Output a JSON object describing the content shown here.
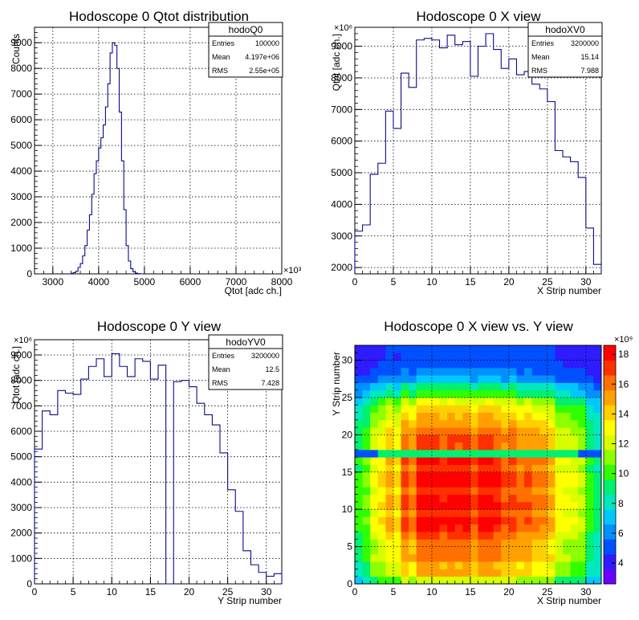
{
  "chart_data": [
    {
      "type": "histogram",
      "title": "Hodoscope 0 Qtot distribution",
      "xlabel": "Qtot [adc ch.]",
      "ylabel": "Counts",
      "x_exponent": "×10³",
      "xlim": [
        2600,
        8000
      ],
      "ylim": [
        0,
        9600
      ],
      "xticks": [
        3000,
        4000,
        5000,
        6000,
        7000,
        8000
      ],
      "xtick_labels": [
        "3000",
        "4000",
        "5000",
        "6000",
        "7000",
        "8000"
      ],
      "yticks": [
        0,
        1000,
        2000,
        3000,
        4000,
        5000,
        6000,
        7000,
        8000,
        9000
      ],
      "ytick_labels": [
        "0",
        "1000",
        "2000",
        "3000",
        "4000",
        "5000",
        "6000",
        "7000",
        "8000",
        "9000"
      ],
      "bin_width": 50,
      "x": [
        3400,
        3450,
        3500,
        3550,
        3600,
        3650,
        3700,
        3750,
        3800,
        3850,
        3900,
        3950,
        4000,
        4050,
        4100,
        4150,
        4200,
        4250,
        4300,
        4350,
        4400,
        4450,
        4500,
        4550,
        4600,
        4650,
        4700,
        4750,
        4800,
        4850,
        4900
      ],
      "values": [
        20,
        50,
        100,
        250,
        400,
        700,
        1100,
        1700,
        2300,
        3100,
        3900,
        4400,
        4900,
        5300,
        5800,
        6500,
        7400,
        8600,
        9000,
        8900,
        8000,
        6300,
        4400,
        2500,
        1100,
        500,
        200,
        80,
        30,
        10,
        0
      ],
      "stats": {
        "name": "hodoQ0",
        "rows": [
          {
            "label": "Entries",
            "value": "100000"
          },
          {
            "label": "Mean",
            "value": "4.197e+06"
          },
          {
            "label": "RMS",
            "value": "2.55e+05"
          }
        ]
      },
      "grid": true
    },
    {
      "type": "histogram",
      "title": "Hodoscope 0 X view",
      "xlabel": "X Strip number",
      "ylabel": "Qtot [adc ch.]",
      "y_exponent": "×10⁶",
      "xlim": [
        0,
        32
      ],
      "ylim": [
        1800,
        9600
      ],
      "xticks": [
        0,
        5,
        10,
        15,
        20,
        25,
        30
      ],
      "xtick_labels": [
        "0",
        "5",
        "10",
        "15",
        "20",
        "25",
        "30"
      ],
      "yticks": [
        2000,
        3000,
        4000,
        5000,
        6000,
        7000,
        8000,
        9000
      ],
      "ytick_labels": [
        "2000",
        "3000",
        "4000",
        "5000",
        "6000",
        "7000",
        "8000",
        "9000"
      ],
      "bin_width": 1,
      "x": [
        0,
        1,
        2,
        3,
        4,
        5,
        6,
        7,
        8,
        9,
        10,
        11,
        12,
        13,
        14,
        15,
        16,
        17,
        18,
        19,
        20,
        21,
        22,
        23,
        24,
        25,
        26,
        27,
        28,
        29,
        30,
        31
      ],
      "values": [
        3150,
        3350,
        4950,
        5300,
        6950,
        6400,
        8150,
        7700,
        9200,
        9250,
        9200,
        8950,
        9350,
        9050,
        9150,
        8050,
        9000,
        9400,
        8900,
        8300,
        8600,
        8100,
        8200,
        7800,
        7650,
        7250,
        5700,
        5500,
        5350,
        4850,
        3250,
        2100
      ],
      "stats": {
        "name": "hodoXV0",
        "rows": [
          {
            "label": "Entries",
            "value": "3200000"
          },
          {
            "label": "Mean",
            "value": "15.14"
          },
          {
            "label": "RMS",
            "value": "7.988"
          }
        ]
      },
      "grid": true
    },
    {
      "type": "histogram",
      "title": "Hodoscope 0 Y view",
      "xlabel": "Y Strip number",
      "ylabel": "Qtot [adc ch.]",
      "y_exponent": "×10⁶",
      "xlim": [
        0,
        32
      ],
      "ylim": [
        0,
        9600
      ],
      "xticks": [
        0,
        5,
        10,
        15,
        20,
        25,
        30
      ],
      "xtick_labels": [
        "0",
        "5",
        "10",
        "15",
        "20",
        "25",
        "30"
      ],
      "yticks": [
        0,
        1000,
        2000,
        3000,
        4000,
        5000,
        6000,
        7000,
        8000,
        9000
      ],
      "ytick_labels": [
        "0",
        "1000",
        "2000",
        "3000",
        "4000",
        "5000",
        "6000",
        "7000",
        "8000",
        "9000"
      ],
      "bin_width": 1,
      "x": [
        0,
        1,
        2,
        3,
        4,
        5,
        6,
        7,
        8,
        9,
        10,
        11,
        12,
        13,
        14,
        15,
        16,
        17,
        18,
        19,
        20,
        21,
        22,
        23,
        24,
        25,
        26,
        27,
        28,
        29,
        30,
        31
      ],
      "values": [
        5300,
        6800,
        6650,
        7600,
        7500,
        7450,
        8050,
        8550,
        8850,
        8150,
        9050,
        8550,
        8150,
        8850,
        8750,
        8050,
        8600,
        0,
        7950,
        8000,
        7750,
        7100,
        6650,
        6250,
        5150,
        3700,
        2850,
        1300,
        750,
        450,
        300,
        400
      ],
      "stats": {
        "name": "hodoYV0",
        "rows": [
          {
            "label": "Entries",
            "value": "3200000"
          },
          {
            "label": "Mean",
            "value": "12.5"
          },
          {
            "label": "RMS",
            "value": "7.428"
          }
        ]
      },
      "grid": true
    },
    {
      "type": "heatmap",
      "title": "Hodoscope 0 X view vs. Y view",
      "xlabel": "X Strip number",
      "ylabel": "Y Strip number",
      "z_exponent": "×10⁹",
      "xlim": [
        0,
        32
      ],
      "ylim": [
        0,
        32
      ],
      "xticks": [
        0,
        5,
        10,
        15,
        20,
        25,
        30
      ],
      "xtick_labels": [
        "0",
        "5",
        "10",
        "15",
        "20",
        "25",
        "30"
      ],
      "yticks": [
        0,
        5,
        10,
        15,
        20,
        25,
        30
      ],
      "ytick_labels": [
        "0",
        "5",
        "10",
        "15",
        "20",
        "25",
        "30"
      ],
      "zlim": [
        2.6,
        18.6
      ],
      "zticks": [
        4,
        6,
        8,
        10,
        12,
        14,
        16,
        18
      ],
      "ztick_labels": [
        "4",
        "6",
        "8",
        "10",
        "12",
        "14",
        "16",
        "18"
      ],
      "x_profile": [
        0.47,
        0.52,
        0.66,
        0.71,
        0.8,
        0.74,
        0.93,
        0.88,
        1.0,
        1.0,
        1.0,
        0.97,
        1.0,
        0.98,
        0.99,
        0.92,
        0.99,
        1.0,
        0.97,
        0.91,
        0.94,
        0.89,
        0.9,
        0.86,
        0.85,
        0.81,
        0.68,
        0.66,
        0.64,
        0.6,
        0.47,
        0.4
      ],
      "y_profile": [
        0.62,
        0.78,
        0.77,
        0.86,
        0.85,
        0.85,
        0.91,
        0.96,
        0.99,
        0.93,
        1.0,
        0.97,
        0.93,
        0.99,
        0.99,
        0.92,
        0.97,
        0.0,
        0.9,
        0.91,
        0.88,
        0.82,
        0.77,
        0.73,
        0.63,
        0.48,
        0.4,
        0.26,
        0.2,
        0.17,
        0.15,
        0.16
      ],
      "z_scale": 18.4,
      "z_floor": 2.8,
      "row_17_value": 9.0,
      "colormap": [
        "#6a00ff",
        "#2e1cff",
        "#0050ff",
        "#0090ff",
        "#00c8ff",
        "#00e8c0",
        "#00f070",
        "#30ff00",
        "#8cff00",
        "#d8ff00",
        "#ffff00",
        "#ffd000",
        "#ffa000",
        "#ff7000",
        "#ff3000",
        "#ff0000"
      ],
      "grid": true
    }
  ]
}
